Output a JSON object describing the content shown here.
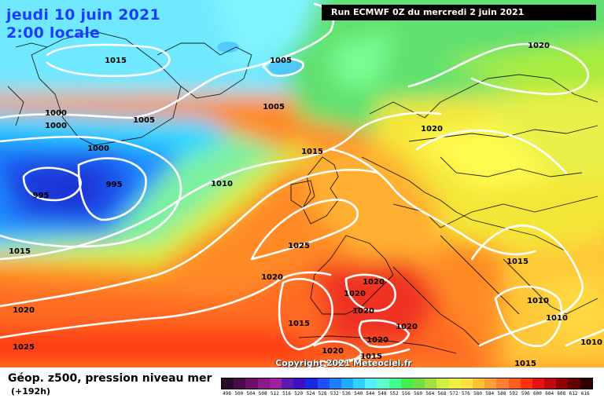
{
  "header": {
    "date_line": "jeudi 10 juin 2021",
    "time_line": "2:00 locale",
    "run_info": "Run ECMWF 0Z du mercredi 2 juin 2021"
  },
  "copyright": "Copyright 2021 Meteociel.fr",
  "footer": {
    "title": "Géop. z500, pression niveau mer",
    "subtitle": "(+192h)"
  },
  "isobars": [
    {
      "label": "1015"
    },
    {
      "label": "1005"
    },
    {
      "label": "1005"
    },
    {
      "label": "1000"
    },
    {
      "label": "1000"
    },
    {
      "label": "1005"
    },
    {
      "label": "1000"
    },
    {
      "label": "995"
    },
    {
      "label": "995"
    },
    {
      "label": "1015"
    },
    {
      "label": "1010"
    },
    {
      "label": "1015"
    },
    {
      "label": "1020"
    },
    {
      "label": "1020"
    },
    {
      "label": "1025"
    },
    {
      "label": "1020"
    },
    {
      "label": "1020"
    },
    {
      "label": "1020"
    },
    {
      "label": "1015"
    },
    {
      "label": "1020"
    },
    {
      "label": "1020"
    },
    {
      "label": "1020"
    },
    {
      "label": "1015"
    },
    {
      "label": "1015"
    },
    {
      "label": "1010"
    },
    {
      "label": "1010"
    },
    {
      "label": "1010"
    },
    {
      "label": "1020"
    },
    {
      "label": "1025"
    },
    {
      "label": "1020"
    },
    {
      "label": "1015"
    }
  ],
  "scale": {
    "labels": [
      "496",
      "500",
      "504",
      "508",
      "512",
      "516",
      "520",
      "524",
      "528",
      "532",
      "536",
      "540",
      "544",
      "548",
      "552",
      "556",
      "560",
      "564",
      "568",
      "572",
      "576",
      "580",
      "584",
      "588",
      "592",
      "596",
      "600",
      "604",
      "608",
      "612",
      "616"
    ],
    "colors": [
      "#2a0a2a",
      "#4b0a4b",
      "#6a0f6a",
      "#8a1a8a",
      "#a020a0",
      "#5a1ab0",
      "#3a10c0",
      "#1a28e0",
      "#1e50ff",
      "#1e7eff",
      "#22aaff",
      "#30d0ff",
      "#50f0ff",
      "#60ffd0",
      "#40ff90",
      "#40f050",
      "#70e040",
      "#a0e040",
      "#d0f040",
      "#f0f040",
      "#ffe040",
      "#ffc030",
      "#ffa030",
      "#ff8030",
      "#ff6020",
      "#ff3010",
      "#e81010",
      "#c00810",
      "#900000",
      "#600000",
      "#300000"
    ]
  }
}
